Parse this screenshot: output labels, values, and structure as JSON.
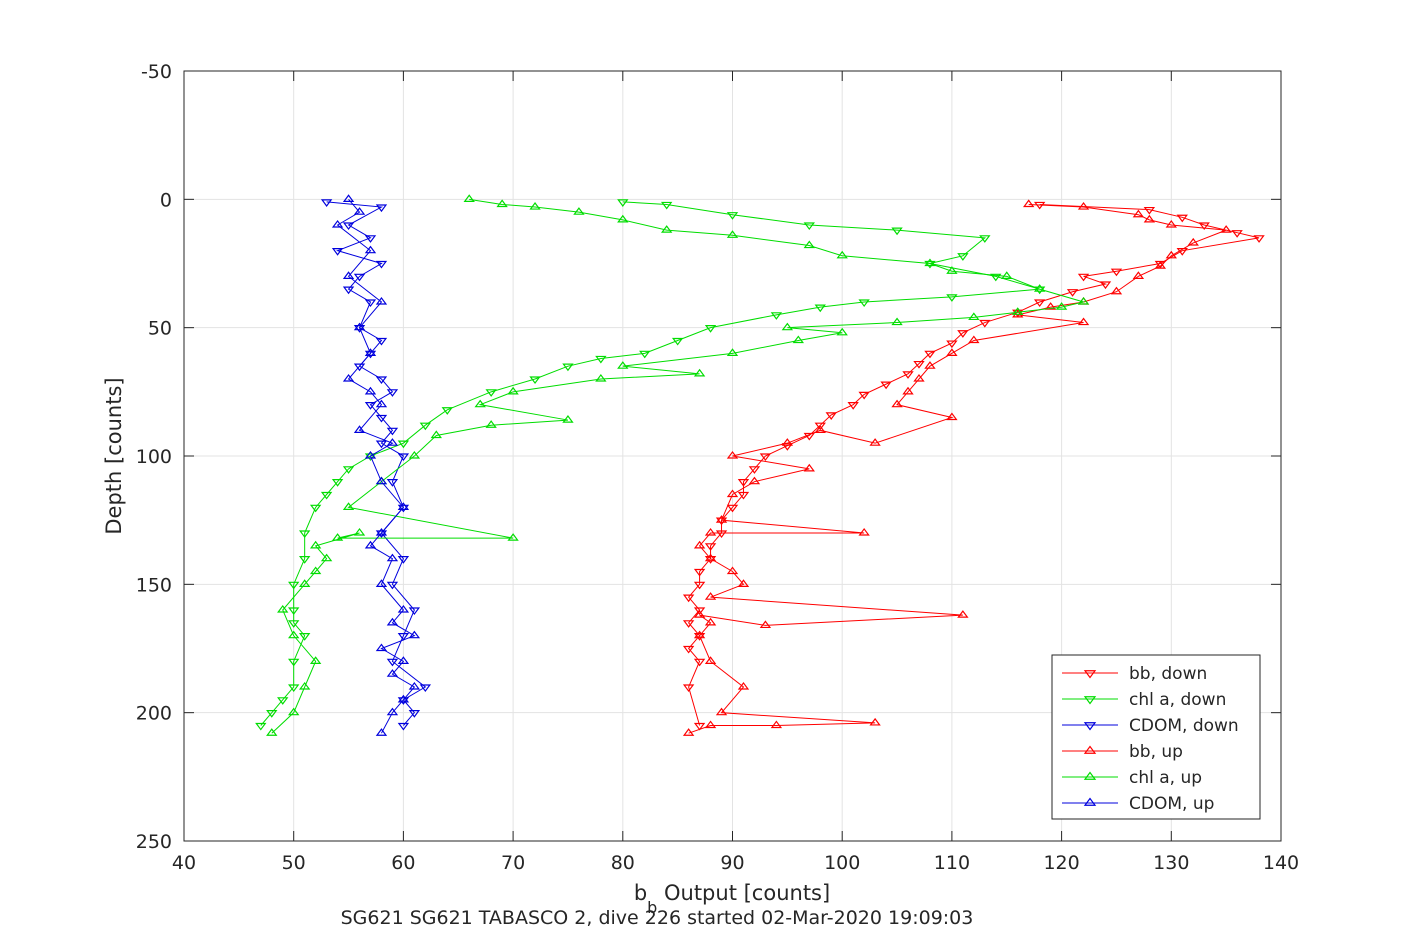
{
  "chart_data": {
    "type": "line",
    "title": "",
    "xlabel": "b_b Output [counts]",
    "xlabel_main": "b",
    "xlabel_sub": "b",
    "xlabel_rest": " Output [counts]",
    "ylabel": "Depth [counts]",
    "caption": "SG621 SG621 TABASCO 2, dive 226 started 02-Mar-2020 19:09:03",
    "xlim": [
      40,
      140
    ],
    "ylim": [
      -50,
      250
    ],
    "y_reversed": true,
    "grid": true,
    "legend_position": "bottom-right",
    "x_ticks": [
      40,
      50,
      60,
      70,
      80,
      90,
      100,
      110,
      120,
      130,
      140
    ],
    "y_ticks": [
      -50,
      0,
      50,
      100,
      150,
      200,
      250
    ],
    "series": [
      {
        "name": "bb, down",
        "color": "#ff0000",
        "marker": "triangle-down",
        "x": [
          118,
          128,
          131,
          133,
          136,
          138,
          131,
          129,
          125,
          122,
          124,
          121,
          118,
          116,
          113,
          111,
          110,
          108,
          107,
          106,
          104,
          102,
          101,
          99,
          98,
          97,
          95,
          93,
          92,
          91,
          91,
          90,
          89,
          89,
          88,
          88,
          87,
          87,
          86,
          87,
          86,
          87,
          86,
          87,
          86,
          87
        ],
        "y": [
          2,
          4,
          7,
          10,
          13,
          15,
          20,
          25,
          28,
          30,
          33,
          36,
          40,
          44,
          48,
          52,
          56,
          60,
          64,
          68,
          72,
          76,
          80,
          84,
          88,
          92,
          96,
          100,
          105,
          110,
          115,
          120,
          125,
          130,
          135,
          140,
          145,
          150,
          155,
          160,
          165,
          170,
          175,
          180,
          190,
          205
        ]
      },
      {
        "name": "chl a, down",
        "color": "#00dd00",
        "marker": "triangle-down",
        "x": [
          80,
          84,
          90,
          97,
          105,
          113,
          111,
          108,
          114,
          118,
          110,
          102,
          98,
          94,
          88,
          85,
          82,
          78,
          75,
          72,
          68,
          64,
          62,
          60,
          57,
          55,
          54,
          53,
          52,
          51,
          51,
          50,
          50,
          50,
          51,
          50,
          50,
          49,
          48,
          47
        ],
        "y": [
          1,
          2,
          6,
          10,
          12,
          15,
          22,
          25,
          30,
          35,
          38,
          40,
          42,
          45,
          50,
          55,
          60,
          62,
          65,
          70,
          75,
          82,
          88,
          95,
          100,
          105,
          110,
          115,
          120,
          130,
          140,
          150,
          160,
          165,
          170,
          180,
          190,
          195,
          200,
          205
        ]
      },
      {
        "name": "CDOM, down",
        "color": "#0000dd",
        "marker": "triangle-down",
        "x": [
          53,
          58,
          55,
          57,
          54,
          58,
          56,
          55,
          57,
          56,
          58,
          57,
          56,
          58,
          59,
          57,
          58,
          59,
          58,
          60,
          59,
          60,
          58,
          60,
          59,
          61,
          60,
          59,
          62,
          60,
          61,
          60
        ],
        "y": [
          1,
          3,
          10,
          15,
          20,
          25,
          30,
          35,
          40,
          50,
          55,
          60,
          65,
          70,
          75,
          80,
          85,
          90,
          95,
          100,
          110,
          120,
          130,
          140,
          150,
          160,
          170,
          180,
          190,
          195,
          200,
          205
        ]
      },
      {
        "name": "bb, up",
        "color": "#ff0000",
        "marker": "triangle-up",
        "x": [
          86,
          88,
          94,
          103,
          89,
          91,
          88,
          87,
          88,
          87,
          93,
          111,
          88,
          91,
          90,
          88,
          87,
          88,
          102,
          89,
          90,
          92,
          97,
          90,
          95,
          98,
          103,
          110,
          105,
          106,
          107,
          108,
          110,
          112,
          122,
          116,
          119,
          122,
          125,
          127,
          129,
          130,
          132,
          135,
          130,
          128,
          127,
          122,
          117
        ],
        "y": [
          208,
          205,
          205,
          204,
          200,
          190,
          180,
          170,
          165,
          162,
          166,
          162,
          155,
          150,
          145,
          140,
          135,
          130,
          130,
          125,
          115,
          110,
          105,
          100,
          95,
          90,
          95,
          85,
          80,
          75,
          70,
          65,
          60,
          55,
          48,
          45,
          42,
          40,
          36,
          30,
          26,
          22,
          17,
          12,
          10,
          8,
          6,
          3,
          2
        ]
      },
      {
        "name": "chl a, up",
        "color": "#00dd00",
        "marker": "triangle-up",
        "x": [
          48,
          50,
          51,
          52,
          50,
          49,
          51,
          52,
          53,
          52,
          56,
          54,
          70,
          55,
          58,
          61,
          63,
          68,
          75,
          67,
          70,
          78,
          87,
          80,
          90,
          96,
          100,
          95,
          105,
          112,
          116,
          120,
          122,
          118,
          115,
          110,
          108,
          100,
          97,
          90,
          84,
          80,
          76,
          72,
          69,
          66
        ],
        "y": [
          208,
          200,
          190,
          180,
          170,
          160,
          150,
          145,
          140,
          135,
          130,
          132,
          132,
          120,
          110,
          100,
          92,
          88,
          86,
          80,
          75,
          70,
          68,
          65,
          60,
          55,
          52,
          50,
          48,
          46,
          44,
          42,
          40,
          35,
          30,
          28,
          25,
          22,
          18,
          14,
          12,
          8,
          5,
          3,
          2,
          0
        ]
      },
      {
        "name": "CDOM, up",
        "color": "#0000dd",
        "marker": "triangle-up",
        "x": [
          58,
          59,
          60,
          61,
          59,
          60,
          58,
          61,
          59,
          60,
          58,
          59,
          57,
          58,
          60,
          58,
          57,
          59,
          56,
          58,
          57,
          55,
          57,
          56,
          58,
          55,
          57,
          54,
          56,
          55
        ],
        "y": [
          208,
          200,
          195,
          190,
          185,
          180,
          175,
          170,
          165,
          160,
          150,
          140,
          135,
          130,
          120,
          110,
          100,
          95,
          90,
          80,
          75,
          70,
          60,
          50,
          40,
          30,
          20,
          10,
          5,
          0
        ]
      }
    ]
  }
}
